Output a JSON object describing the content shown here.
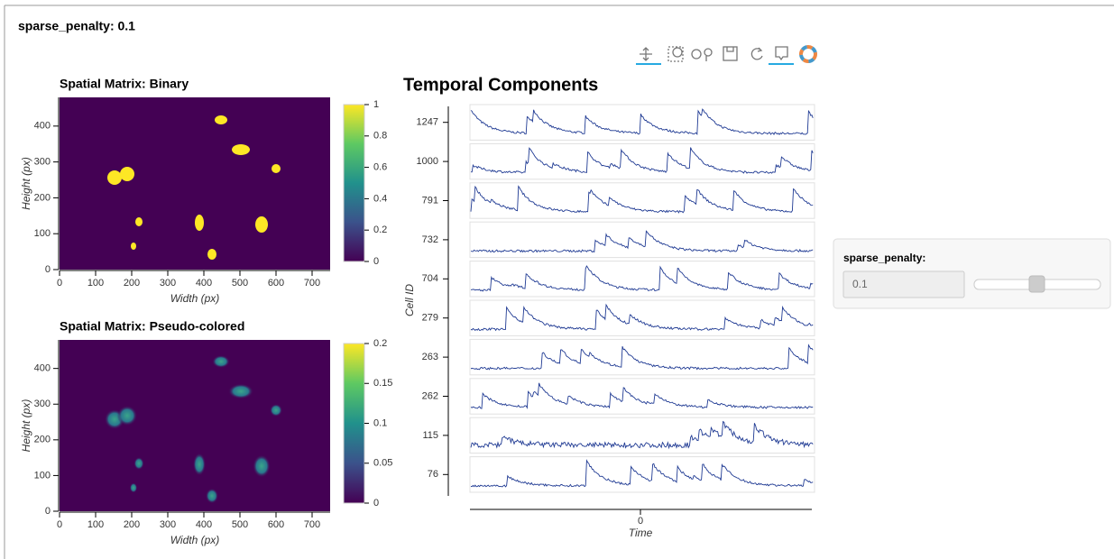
{
  "header": {
    "title": "sparse_penalty: 0.1"
  },
  "spatial_binary": {
    "title": "Spatial Matrix: Binary",
    "x_label": "Width (px)",
    "y_label": "Height (px)",
    "xlim": [
      0,
      750
    ],
    "ylim": [
      0,
      480
    ],
    "xticks": [
      0,
      100,
      200,
      300,
      400,
      500,
      600,
      700
    ],
    "yticks": [
      0,
      100,
      200,
      300,
      400
    ],
    "colorbar": {
      "lim": [
        0,
        1
      ],
      "ticks": [
        0,
        0.2,
        0.4,
        0.6,
        0.8,
        1
      ]
    }
  },
  "spatial_pseudo": {
    "title": "Spatial Matrix: Pseudo-colored",
    "x_label": "Width (px)",
    "y_label": "Height (px)",
    "xlim": [
      0,
      750
    ],
    "ylim": [
      0,
      480
    ],
    "xticks": [
      0,
      100,
      200,
      300,
      400,
      500,
      600,
      700
    ],
    "yticks": [
      0,
      100,
      200,
      300,
      400
    ],
    "colorbar": {
      "lim": [
        0,
        0.2
      ],
      "ticks": [
        0,
        0.05,
        0.1,
        0.15,
        0.2
      ]
    }
  },
  "temporal": {
    "title": "Temporal Components",
    "y_label": "Cell ID",
    "x_label": "Time",
    "cells": [
      "1247",
      "1000",
      "791",
      "732",
      "704",
      "279",
      "263",
      "262",
      "115",
      "76"
    ],
    "xticks": [
      0
    ]
  },
  "widget": {
    "label": "sparse_penalty:",
    "value": "0.1"
  }
}
